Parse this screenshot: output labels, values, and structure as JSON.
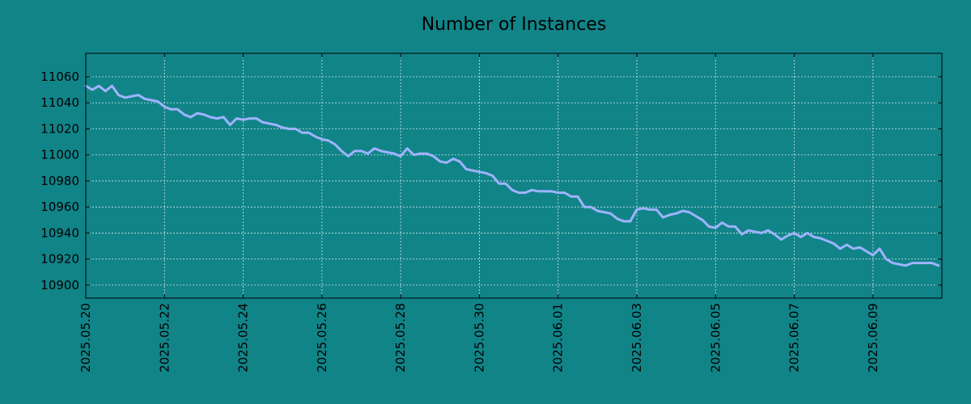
{
  "colors": {
    "background": "#118488",
    "line": "#9fb3ff",
    "grid": "#cfe6e6",
    "axes": "#000000"
  },
  "chart_data": {
    "type": "line",
    "title": "Number of Instances",
    "xlabel": "",
    "ylabel": "",
    "grid": true,
    "legend": "none",
    "x_start": "2025-05-20",
    "x_end": "2025-06-10",
    "x_ticks": [
      "2025.05.20",
      "2025.05.22",
      "2025.05.24",
      "2025.05.26",
      "2025.05.28",
      "2025.05.30",
      "2025.06.01",
      "2025.06.03",
      "2025.06.05",
      "2025.06.07",
      "2025.06.09"
    ],
    "ylim": [
      10890,
      11078
    ],
    "y_ticks": [
      10900,
      10920,
      10940,
      10960,
      10980,
      11000,
      11020,
      11040,
      11060
    ],
    "series": [
      {
        "points": [
          [
            "2025-05-20 00:00",
            11053
          ],
          [
            "2025-05-20 04:00",
            11050
          ],
          [
            "2025-05-20 08:00",
            11053
          ],
          [
            "2025-05-20 12:00",
            11049
          ],
          [
            "2025-05-20 16:00",
            11053
          ],
          [
            "2025-05-20 20:00",
            11046
          ],
          [
            "2025-05-21 00:00",
            11044
          ],
          [
            "2025-05-21 04:00",
            11045
          ],
          [
            "2025-05-21 08:00",
            11046
          ],
          [
            "2025-05-21 12:00",
            11043
          ],
          [
            "2025-05-21 16:00",
            11042
          ],
          [
            "2025-05-21 20:00",
            11041
          ],
          [
            "2025-05-22 00:00",
            11037
          ],
          [
            "2025-05-22 04:00",
            11035
          ],
          [
            "2025-05-22 08:00",
            11035
          ],
          [
            "2025-05-22 12:00",
            11031
          ],
          [
            "2025-05-22 16:00",
            11029
          ],
          [
            "2025-05-22 20:00",
            11032
          ],
          [
            "2025-05-23 00:00",
            11031
          ],
          [
            "2025-05-23 04:00",
            11029
          ],
          [
            "2025-05-23 08:00",
            11028
          ],
          [
            "2025-05-23 12:00",
            11029
          ],
          [
            "2025-05-23 16:00",
            11023
          ],
          [
            "2025-05-23 20:00",
            11028
          ],
          [
            "2025-05-24 00:00",
            11027
          ],
          [
            "2025-05-24 04:00",
            11028
          ],
          [
            "2025-05-24 08:00",
            11028
          ],
          [
            "2025-05-24 12:00",
            11025
          ],
          [
            "2025-05-24 16:00",
            11024
          ],
          [
            "2025-05-24 20:00",
            11023
          ],
          [
            "2025-05-25 00:00",
            11021
          ],
          [
            "2025-05-25 04:00",
            11020
          ],
          [
            "2025-05-25 08:00",
            11020
          ],
          [
            "2025-05-25 12:00",
            11017
          ],
          [
            "2025-05-25 16:00",
            11017
          ],
          [
            "2025-05-25 20:00",
            11014
          ],
          [
            "2025-05-26 00:00",
            11012
          ],
          [
            "2025-05-26 04:00",
            11011
          ],
          [
            "2025-05-26 08:00",
            11008
          ],
          [
            "2025-05-26 12:00",
            11003
          ],
          [
            "2025-05-26 16:00",
            10999
          ],
          [
            "2025-05-26 20:00",
            11003
          ],
          [
            "2025-05-27 00:00",
            11003
          ],
          [
            "2025-05-27 04:00",
            11001
          ],
          [
            "2025-05-27 08:00",
            11005
          ],
          [
            "2025-05-27 12:00",
            11003
          ],
          [
            "2025-05-27 16:00",
            11002
          ],
          [
            "2025-05-27 20:00",
            11001
          ],
          [
            "2025-05-28 00:00",
            10999
          ],
          [
            "2025-05-28 04:00",
            11005
          ],
          [
            "2025-05-28 08:00",
            11000
          ],
          [
            "2025-05-28 12:00",
            11001
          ],
          [
            "2025-05-28 16:00",
            11001
          ],
          [
            "2025-05-28 20:00",
            10999
          ],
          [
            "2025-05-29 00:00",
            10995
          ],
          [
            "2025-05-29 04:00",
            10994
          ],
          [
            "2025-05-29 08:00",
            10997
          ],
          [
            "2025-05-29 12:00",
            10995
          ],
          [
            "2025-05-29 16:00",
            10989
          ],
          [
            "2025-05-29 20:00",
            10988
          ],
          [
            "2025-05-30 00:00",
            10987
          ],
          [
            "2025-05-30 04:00",
            10986
          ],
          [
            "2025-05-30 08:00",
            10984
          ],
          [
            "2025-05-30 12:00",
            10978
          ],
          [
            "2025-05-30 16:00",
            10978
          ],
          [
            "2025-05-30 20:00",
            10973
          ],
          [
            "2025-05-31 00:00",
            10971
          ],
          [
            "2025-05-31 04:00",
            10971
          ],
          [
            "2025-05-31 08:00",
            10973
          ],
          [
            "2025-05-31 12:00",
            10972
          ],
          [
            "2025-05-31 16:00",
            10972
          ],
          [
            "2025-05-31 20:00",
            10972
          ],
          [
            "2025-06-01 00:00",
            10971
          ],
          [
            "2025-06-01 04:00",
            10971
          ],
          [
            "2025-06-01 08:00",
            10968
          ],
          [
            "2025-06-01 12:00",
            10968
          ],
          [
            "2025-06-01 16:00",
            10960
          ],
          [
            "2025-06-01 20:00",
            10960
          ],
          [
            "2025-06-02 00:00",
            10957
          ],
          [
            "2025-06-02 04:00",
            10956
          ],
          [
            "2025-06-02 08:00",
            10955
          ],
          [
            "2025-06-02 12:00",
            10951
          ],
          [
            "2025-06-02 16:00",
            10949
          ],
          [
            "2025-06-02 20:00",
            10949
          ],
          [
            "2025-06-03 00:00",
            10958
          ],
          [
            "2025-06-03 04:00",
            10959
          ],
          [
            "2025-06-03 08:00",
            10958
          ],
          [
            "2025-06-03 12:00",
            10958
          ],
          [
            "2025-06-03 16:00",
            10952
          ],
          [
            "2025-06-03 20:00",
            10954
          ],
          [
            "2025-06-04 00:00",
            10955
          ],
          [
            "2025-06-04 04:00",
            10957
          ],
          [
            "2025-06-04 08:00",
            10956
          ],
          [
            "2025-06-04 12:00",
            10953
          ],
          [
            "2025-06-04 16:00",
            10950
          ],
          [
            "2025-06-04 20:00",
            10945
          ],
          [
            "2025-06-05 00:00",
            10944
          ],
          [
            "2025-06-05 04:00",
            10948
          ],
          [
            "2025-06-05 08:00",
            10945
          ],
          [
            "2025-06-05 12:00",
            10945
          ],
          [
            "2025-06-05 16:00",
            10939
          ],
          [
            "2025-06-05 20:00",
            10942
          ],
          [
            "2025-06-06 00:00",
            10941
          ],
          [
            "2025-06-06 04:00",
            10940
          ],
          [
            "2025-06-06 08:00",
            10942
          ],
          [
            "2025-06-06 12:00",
            10939
          ],
          [
            "2025-06-06 16:00",
            10935
          ],
          [
            "2025-06-06 20:00",
            10938
          ],
          [
            "2025-06-07 00:00",
            10940
          ],
          [
            "2025-06-07 04:00",
            10937
          ],
          [
            "2025-06-07 08:00",
            10940
          ],
          [
            "2025-06-07 12:00",
            10937
          ],
          [
            "2025-06-07 16:00",
            10936
          ],
          [
            "2025-06-07 20:00",
            10934
          ],
          [
            "2025-06-08 00:00",
            10932
          ],
          [
            "2025-06-08 04:00",
            10928
          ],
          [
            "2025-06-08 08:00",
            10931
          ],
          [
            "2025-06-08 12:00",
            10928
          ],
          [
            "2025-06-08 16:00",
            10929
          ],
          [
            "2025-06-08 20:00",
            10926
          ],
          [
            "2025-06-09 00:00",
            10923
          ],
          [
            "2025-06-09 04:00",
            10928
          ],
          [
            "2025-06-09 08:00",
            10920
          ],
          [
            "2025-06-09 12:00",
            10917
          ],
          [
            "2025-06-09 16:00",
            10916
          ],
          [
            "2025-06-09 20:00",
            10915
          ],
          [
            "2025-06-10 00:00",
            10917
          ],
          [
            "2025-06-10 04:00",
            10917
          ],
          [
            "2025-06-10 08:00",
            10917
          ],
          [
            "2025-06-10 12:00",
            10917
          ],
          [
            "2025-06-10 16:00",
            10915
          ]
        ]
      }
    ]
  }
}
